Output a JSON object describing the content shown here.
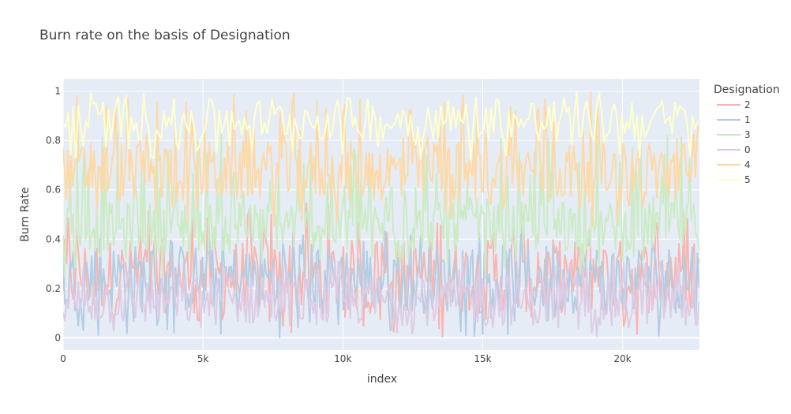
{
  "chart_data": {
    "type": "line",
    "title": "Burn rate on the basis of Designation",
    "xlabel": "index",
    "ylabel": "Burn Rate",
    "xlim": [
      0,
      22750
    ],
    "ylim": [
      -0.05,
      1.05
    ],
    "x_ticks": [
      0,
      5000,
      10000,
      15000,
      20000
    ],
    "x_tick_labels": [
      "0",
      "5k",
      "10k",
      "15k",
      "20k"
    ],
    "y_ticks": [
      0,
      0.2,
      0.4,
      0.6,
      0.8,
      1
    ],
    "y_tick_labels": [
      "0",
      "0.2",
      "0.4",
      "0.6",
      "0.8",
      "1"
    ],
    "grid": true,
    "legend_title": "Designation",
    "legend_position": "right",
    "plot_background": "#e5ecf6",
    "series": [
      {
        "name": "2",
        "color": "#fbb4ae",
        "band": [
          0.0,
          0.55
        ],
        "typical": [
          0.1,
          0.4
        ],
        "step": 60
      },
      {
        "name": "1",
        "color": "#b3cde3",
        "band": [
          0.0,
          0.45
        ],
        "typical": [
          0.1,
          0.38
        ],
        "step": 60
      },
      {
        "name": "3",
        "color": "#ccebc5",
        "band": [
          0.25,
          0.83
        ],
        "typical": [
          0.35,
          0.55
        ],
        "step": 50
      },
      {
        "name": "0",
        "color": "#decbe4",
        "band": [
          0.0,
          0.32
        ],
        "typical": [
          0.05,
          0.25
        ],
        "step": 60
      },
      {
        "name": "4",
        "color": "#fed9a6",
        "band": [
          0.45,
          1.0
        ],
        "typical": [
          0.55,
          0.8
        ],
        "step": 55
      },
      {
        "name": "5",
        "color": "#ffffcc",
        "band": [
          0.72,
          1.0
        ],
        "typical": [
          0.8,
          0.97
        ],
        "step": 90
      }
    ]
  }
}
